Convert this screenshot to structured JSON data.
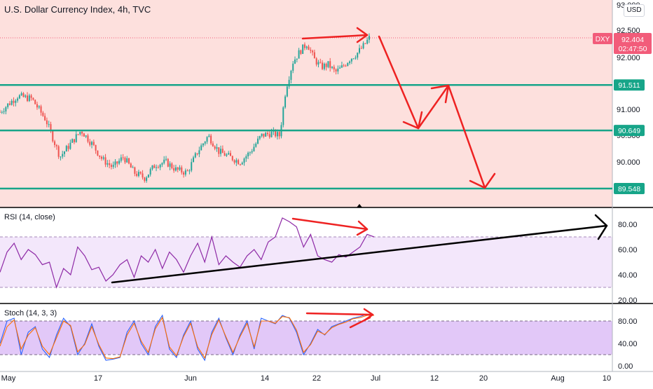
{
  "title": "U.S. Dollar Currency Index, 4h, TVC",
  "currency": "USD",
  "symbol_tag": "DXY",
  "price_tag": {
    "price": "92.404",
    "countdown": "02:47:50"
  },
  "level_labels": [
    "91.511",
    "90.649",
    "89.548"
  ],
  "rsi_label": "RSI (14, close)",
  "stoch_label": "Stoch (14, 3, 3)",
  "colors": {
    "price_bg": "#fde0dd",
    "rsi_band": "#f3e7fb",
    "stoch_band": "#e2c8f8",
    "up_candle": "#26a69a",
    "down_candle": "#ef5350",
    "level_line": "#17a589",
    "rsi_line": "#8e2aa6",
    "stoch_k": "#2962ff",
    "stoch_d": "#ff6d00",
    "arrow": "#ee2222",
    "trend": "#000000",
    "tag_dxy": "#f25c7a"
  },
  "chart_data": [
    {
      "type": "candlestick",
      "title": "U.S. Dollar Currency Index, 4h, TVC",
      "x_ticks": [
        "May",
        "17",
        "Jun",
        "14",
        "22",
        "Jul",
        "12",
        "20",
        "Aug",
        "10"
      ],
      "y_ticks": [
        "93.000",
        "92.500",
        "92.000",
        "91.000",
        "90.500",
        "90.000"
      ],
      "ylim": [
        89.5,
        93.0
      ],
      "horizontal_levels": [
        91.511,
        90.649,
        89.548
      ],
      "last_price": 92.404,
      "close_path": [
        {
          "x": 0.0,
          "y": 91.0
        },
        {
          "x": 1.2,
          "y": 91.15
        },
        {
          "x": 2.5,
          "y": 91.3
        },
        {
          "x": 4.5,
          "y": 91.25
        },
        {
          "x": 6.5,
          "y": 90.85
        },
        {
          "x": 8.5,
          "y": 90.15
        },
        {
          "x": 10.0,
          "y": 90.4
        },
        {
          "x": 11.5,
          "y": 90.65
        },
        {
          "x": 13.0,
          "y": 90.4
        },
        {
          "x": 14.5,
          "y": 90.1
        },
        {
          "x": 16.0,
          "y": 89.95
        },
        {
          "x": 17.5,
          "y": 90.15
        },
        {
          "x": 19.0,
          "y": 89.85
        },
        {
          "x": 20.5,
          "y": 89.75
        },
        {
          "x": 22.0,
          "y": 90.0
        },
        {
          "x": 23.5,
          "y": 90.05
        },
        {
          "x": 25.0,
          "y": 89.9
        },
        {
          "x": 26.5,
          "y": 89.85
        },
        {
          "x": 28.0,
          "y": 90.25
        },
        {
          "x": 29.5,
          "y": 90.55
        },
        {
          "x": 31.0,
          "y": 90.25
        },
        {
          "x": 32.5,
          "y": 90.15
        },
        {
          "x": 34.0,
          "y": 90.05
        },
        {
          "x": 35.5,
          "y": 90.25
        },
        {
          "x": 37.0,
          "y": 90.55
        },
        {
          "x": 38.5,
          "y": 90.6
        },
        {
          "x": 39.6,
          "y": 90.55
        },
        {
          "x": 40.5,
          "y": 91.45
        },
        {
          "x": 41.5,
          "y": 91.95
        },
        {
          "x": 42.5,
          "y": 92.15
        },
        {
          "x": 43.5,
          "y": 92.3
        },
        {
          "x": 44.5,
          "y": 92.0
        },
        {
          "x": 45.5,
          "y": 91.85
        },
        {
          "x": 46.5,
          "y": 91.9
        },
        {
          "x": 47.5,
          "y": 91.75
        },
        {
          "x": 48.5,
          "y": 91.85
        },
        {
          "x": 49.5,
          "y": 92.0
        },
        {
          "x": 50.5,
          "y": 92.1
        },
        {
          "x": 51.5,
          "y": 92.25
        },
        {
          "x": 52.3,
          "y": 92.4
        }
      ]
    },
    {
      "type": "line",
      "title": "RSI (14, close)",
      "y_ticks": [
        "80.00",
        "60.00",
        "40.00",
        "20.00"
      ],
      "ylim": [
        15,
        90
      ],
      "guides": [
        70,
        30
      ],
      "x": [
        0,
        1,
        2,
        3,
        4,
        5,
        6,
        7,
        8,
        9,
        10,
        11,
        12,
        13,
        14,
        15,
        16,
        17,
        18,
        19,
        20,
        21,
        22,
        23,
        24,
        25,
        26,
        27,
        28,
        29,
        30,
        31,
        32,
        33,
        34,
        35,
        36,
        37,
        38,
        39,
        40,
        41,
        42,
        43,
        44,
        45,
        46,
        47,
        48,
        49,
        50,
        51,
        52,
        53
      ],
      "values": [
        42,
        58,
        65,
        52,
        60,
        56,
        48,
        50,
        30,
        45,
        40,
        62,
        55,
        44,
        46,
        35,
        40,
        48,
        52,
        38,
        55,
        50,
        60,
        45,
        58,
        52,
        42,
        55,
        65,
        50,
        70,
        48,
        55,
        50,
        46,
        55,
        60,
        52,
        66,
        70,
        85,
        82,
        78,
        62,
        72,
        55,
        52,
        50,
        56,
        54,
        58,
        62,
        72,
        70
      ]
    },
    {
      "type": "line",
      "title": "Stoch (14, 3, 3)",
      "y_ticks": [
        "80.00",
        "40.00",
        "0.00"
      ],
      "ylim": [
        -5,
        100
      ],
      "guides": [
        80,
        20
      ],
      "series": [
        {
          "name": "",
          "values": [
            40,
            80,
            85,
            20,
            60,
            70,
            30,
            15,
            55,
            85,
            70,
            20,
            40,
            75,
            35,
            10,
            12,
            15,
            60,
            80,
            40,
            20,
            70,
            90,
            30,
            15,
            55,
            80,
            30,
            10,
            60,
            85,
            50,
            20,
            55,
            80,
            30,
            85,
            80,
            75,
            90,
            85,
            60,
            20,
            40,
            65,
            55,
            70,
            75,
            80,
            85,
            88,
            92,
            90
          ]
        },
        {
          "name": "",
          "values": [
            35,
            70,
            82,
            30,
            55,
            68,
            35,
            20,
            50,
            80,
            72,
            25,
            38,
            70,
            38,
            14,
            13,
            16,
            55,
            76,
            44,
            24,
            66,
            86,
            34,
            18,
            52,
            76,
            34,
            14,
            56,
            82,
            52,
            24,
            52,
            76,
            34,
            80,
            80,
            76,
            88,
            86,
            64,
            24,
            38,
            62,
            56,
            68,
            74,
            78,
            84,
            86,
            90,
            90
          ]
        }
      ]
    }
  ]
}
